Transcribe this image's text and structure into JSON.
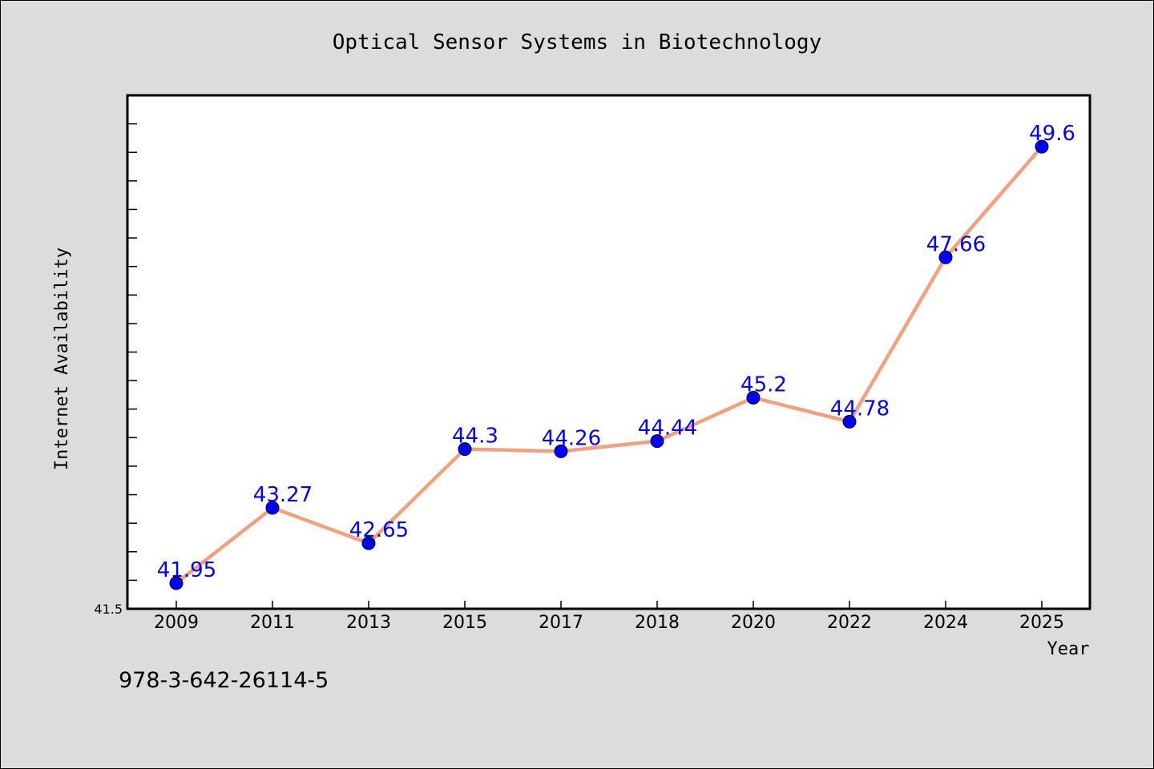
{
  "chart_data": {
    "type": "line",
    "title": "Optical Sensor Systems in Biotechnology",
    "xlabel": "Year",
    "ylabel": "Internet Availability",
    "categories": [
      "2009",
      "2011",
      "2013",
      "2015",
      "2017",
      "2018",
      "2020",
      "2022",
      "2024",
      "2025"
    ],
    "series": [
      {
        "name": "",
        "values": [
          41.95,
          43.27,
          42.65,
          44.3,
          44.26,
          44.44,
          45.2,
          44.78,
          47.66,
          49.6
        ],
        "labels": [
          "41.95",
          "43.27",
          "42.65",
          "44.3",
          "44.26",
          "44.44",
          "45.2",
          "44.78",
          "47.66",
          "49.6"
        ]
      }
    ],
    "ylim": [
      41.5,
      50.5
    ],
    "y_tick_labels": [
      "41.5"
    ],
    "grid": false,
    "legend": "none",
    "colors": {
      "line": "#f4a07e",
      "marker": "#0000ff",
      "data_label": "#0000ff",
      "plot_background": "#ffffff",
      "figure_background": "#dcdcdc"
    }
  },
  "footnote": "978-3-642-26114-5"
}
